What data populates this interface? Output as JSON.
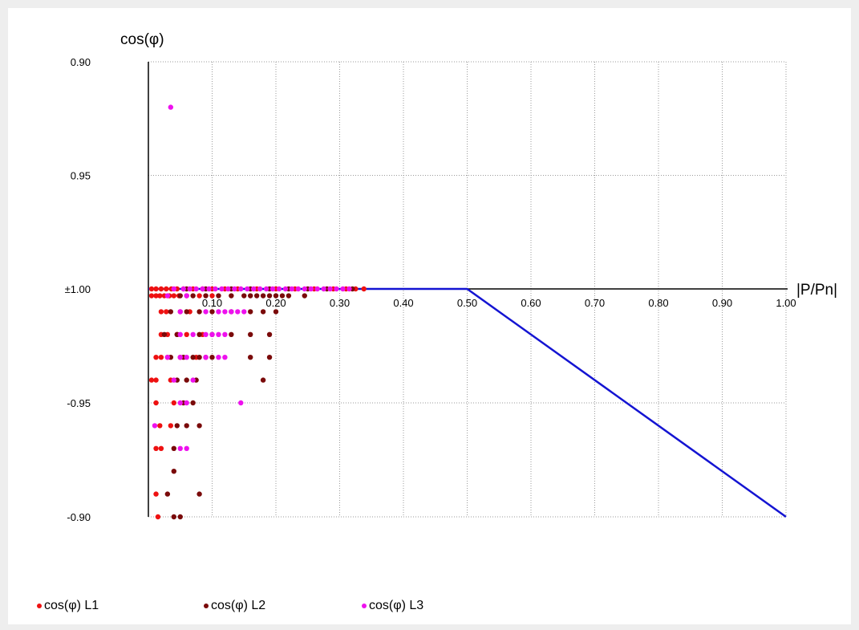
{
  "chart_data": {
    "type": "scatter",
    "xlabel": "|P/Pn|",
    "ylabel": "cos(φ)",
    "xlim": [
      0,
      1.0
    ],
    "x_ticks": [
      "0.10",
      "0.20",
      "0.30",
      "0.40",
      "0.50",
      "0.60",
      "0.70",
      "0.80",
      "0.90",
      "1.00"
    ],
    "y_ticks": [
      "0.90",
      "0.95",
      "±1.00",
      "-0.95",
      "-0.90"
    ],
    "y_scale_note": "signed cos(φ) axis: capacitive 0.90 at top, ±1.00 at centre, inductive -0.90 at bottom",
    "grid": true,
    "legend_position": "bottom-left",
    "limit_line": {
      "color": "#1414d2",
      "points": [
        {
          "x": 0.0,
          "y": 1.0
        },
        {
          "x": 0.5,
          "y": 1.0
        },
        {
          "x": 1.0,
          "y": -0.9
        }
      ]
    },
    "series": [
      {
        "name": "cos(φ) L1",
        "color": "#ee1111",
        "points": [
          [
            0.005,
            1.0
          ],
          [
            0.012,
            1.0
          ],
          [
            0.02,
            1.0
          ],
          [
            0.028,
            1.0
          ],
          [
            0.036,
            1.0
          ],
          [
            0.045,
            1.0
          ],
          [
            0.055,
            1.0
          ],
          [
            0.07,
            1.0
          ],
          [
            0.085,
            1.0
          ],
          [
            0.1,
            1.0
          ],
          [
            0.12,
            1.0
          ],
          [
            0.14,
            1.0
          ],
          [
            0.17,
            1.0
          ],
          [
            0.2,
            1.0
          ],
          [
            0.23,
            1.0
          ],
          [
            0.26,
            1.0
          ],
          [
            0.29,
            1.0
          ],
          [
            0.31,
            1.0
          ],
          [
            0.325,
            1.0
          ],
          [
            0.338,
            1.0
          ],
          [
            0.005,
            -0.997
          ],
          [
            0.012,
            -0.997
          ],
          [
            0.018,
            -0.997
          ],
          [
            0.025,
            -0.997
          ],
          [
            0.033,
            -0.997
          ],
          [
            0.04,
            -0.997
          ],
          [
            0.048,
            -0.997
          ],
          [
            0.06,
            -0.997
          ],
          [
            0.08,
            -0.997
          ],
          [
            0.1,
            -0.997
          ],
          [
            0.02,
            -0.99
          ],
          [
            0.028,
            -0.99
          ],
          [
            0.05,
            -0.99
          ],
          [
            0.065,
            -0.99
          ],
          [
            0.02,
            -0.98
          ],
          [
            0.03,
            -0.98
          ],
          [
            0.045,
            -0.98
          ],
          [
            0.06,
            -0.98
          ],
          [
            0.085,
            -0.98
          ],
          [
            0.012,
            -0.97
          ],
          [
            0.02,
            -0.97
          ],
          [
            0.03,
            -0.97
          ],
          [
            0.05,
            -0.97
          ],
          [
            0.075,
            -0.97
          ],
          [
            0.09,
            -0.97
          ],
          [
            0.005,
            -0.96
          ],
          [
            0.012,
            -0.96
          ],
          [
            0.035,
            -0.96
          ],
          [
            0.012,
            -0.95
          ],
          [
            0.04,
            -0.95
          ],
          [
            0.018,
            -0.94
          ],
          [
            0.035,
            -0.94
          ],
          [
            0.012,
            -0.93
          ],
          [
            0.02,
            -0.93
          ],
          [
            0.012,
            -0.91
          ],
          [
            0.015,
            -0.9
          ]
        ]
      },
      {
        "name": "cos(φ) L2",
        "color": "#7a0a0a",
        "points": [
          [
            0.06,
            1.0
          ],
          [
            0.09,
            1.0
          ],
          [
            0.13,
            1.0
          ],
          [
            0.16,
            1.0
          ],
          [
            0.19,
            1.0
          ],
          [
            0.22,
            1.0
          ],
          [
            0.25,
            1.0
          ],
          [
            0.28,
            1.0
          ],
          [
            0.32,
            1.0
          ],
          [
            0.05,
            -0.997
          ],
          [
            0.07,
            -0.997
          ],
          [
            0.09,
            -0.997
          ],
          [
            0.11,
            -0.997
          ],
          [
            0.13,
            -0.997
          ],
          [
            0.15,
            -0.997
          ],
          [
            0.16,
            -0.997
          ],
          [
            0.17,
            -0.997
          ],
          [
            0.18,
            -0.997
          ],
          [
            0.19,
            -0.997
          ],
          [
            0.2,
            -0.997
          ],
          [
            0.21,
            -0.997
          ],
          [
            0.22,
            -0.997
          ],
          [
            0.245,
            -0.997
          ],
          [
            0.035,
            -0.99
          ],
          [
            0.06,
            -0.99
          ],
          [
            0.08,
            -0.99
          ],
          [
            0.1,
            -0.99
          ],
          [
            0.13,
            -0.99
          ],
          [
            0.16,
            -0.99
          ],
          [
            0.18,
            -0.99
          ],
          [
            0.2,
            -0.99
          ],
          [
            0.025,
            -0.98
          ],
          [
            0.045,
            -0.98
          ],
          [
            0.08,
            -0.98
          ],
          [
            0.1,
            -0.98
          ],
          [
            0.13,
            -0.98
          ],
          [
            0.16,
            -0.98
          ],
          [
            0.19,
            -0.98
          ],
          [
            0.035,
            -0.97
          ],
          [
            0.055,
            -0.97
          ],
          [
            0.07,
            -0.97
          ],
          [
            0.08,
            -0.97
          ],
          [
            0.1,
            -0.97
          ],
          [
            0.16,
            -0.97
          ],
          [
            0.19,
            -0.97
          ],
          [
            0.045,
            -0.96
          ],
          [
            0.06,
            -0.96
          ],
          [
            0.075,
            -0.96
          ],
          [
            0.18,
            -0.96
          ],
          [
            0.055,
            -0.95
          ],
          [
            0.07,
            -0.95
          ],
          [
            0.045,
            -0.94
          ],
          [
            0.06,
            -0.94
          ],
          [
            0.08,
            -0.94
          ],
          [
            0.04,
            -0.93
          ],
          [
            0.04,
            -0.92
          ],
          [
            0.03,
            -0.91
          ],
          [
            0.08,
            -0.91
          ],
          [
            0.04,
            -0.9
          ],
          [
            0.05,
            -0.9
          ]
        ]
      },
      {
        "name": "cos(φ) L3",
        "color": "#ee11ee",
        "points": [
          [
            0.035,
            0.92
          ],
          [
            0.04,
            1.0
          ],
          [
            0.055,
            1.0
          ],
          [
            0.065,
            1.0
          ],
          [
            0.075,
            1.0
          ],
          [
            0.085,
            1.0
          ],
          [
            0.095,
            1.0
          ],
          [
            0.105,
            1.0
          ],
          [
            0.115,
            1.0
          ],
          [
            0.125,
            1.0
          ],
          [
            0.135,
            1.0
          ],
          [
            0.145,
            1.0
          ],
          [
            0.155,
            1.0
          ],
          [
            0.165,
            1.0
          ],
          [
            0.175,
            1.0
          ],
          [
            0.185,
            1.0
          ],
          [
            0.195,
            1.0
          ],
          [
            0.205,
            1.0
          ],
          [
            0.215,
            1.0
          ],
          [
            0.225,
            1.0
          ],
          [
            0.235,
            1.0
          ],
          [
            0.245,
            1.0
          ],
          [
            0.255,
            1.0
          ],
          [
            0.265,
            1.0
          ],
          [
            0.275,
            1.0
          ],
          [
            0.285,
            1.0
          ],
          [
            0.295,
            1.0
          ],
          [
            0.305,
            1.0
          ],
          [
            0.315,
            1.0
          ],
          [
            0.03,
            -0.997
          ],
          [
            0.06,
            -0.997
          ],
          [
            0.05,
            -0.99
          ],
          [
            0.09,
            -0.99
          ],
          [
            0.11,
            -0.99
          ],
          [
            0.12,
            -0.99
          ],
          [
            0.13,
            -0.99
          ],
          [
            0.14,
            -0.99
          ],
          [
            0.15,
            -0.99
          ],
          [
            0.05,
            -0.98
          ],
          [
            0.07,
            -0.98
          ],
          [
            0.09,
            -0.98
          ],
          [
            0.1,
            -0.98
          ],
          [
            0.11,
            -0.98
          ],
          [
            0.12,
            -0.98
          ],
          [
            0.03,
            -0.97
          ],
          [
            0.05,
            -0.97
          ],
          [
            0.06,
            -0.97
          ],
          [
            0.09,
            -0.97
          ],
          [
            0.11,
            -0.97
          ],
          [
            0.12,
            -0.97
          ],
          [
            0.04,
            -0.96
          ],
          [
            0.07,
            -0.96
          ],
          [
            0.05,
            -0.95
          ],
          [
            0.06,
            -0.95
          ],
          [
            0.145,
            -0.95
          ],
          [
            0.01,
            -0.94
          ],
          [
            0.05,
            -0.93
          ],
          [
            0.06,
            -0.93
          ]
        ]
      }
    ]
  }
}
